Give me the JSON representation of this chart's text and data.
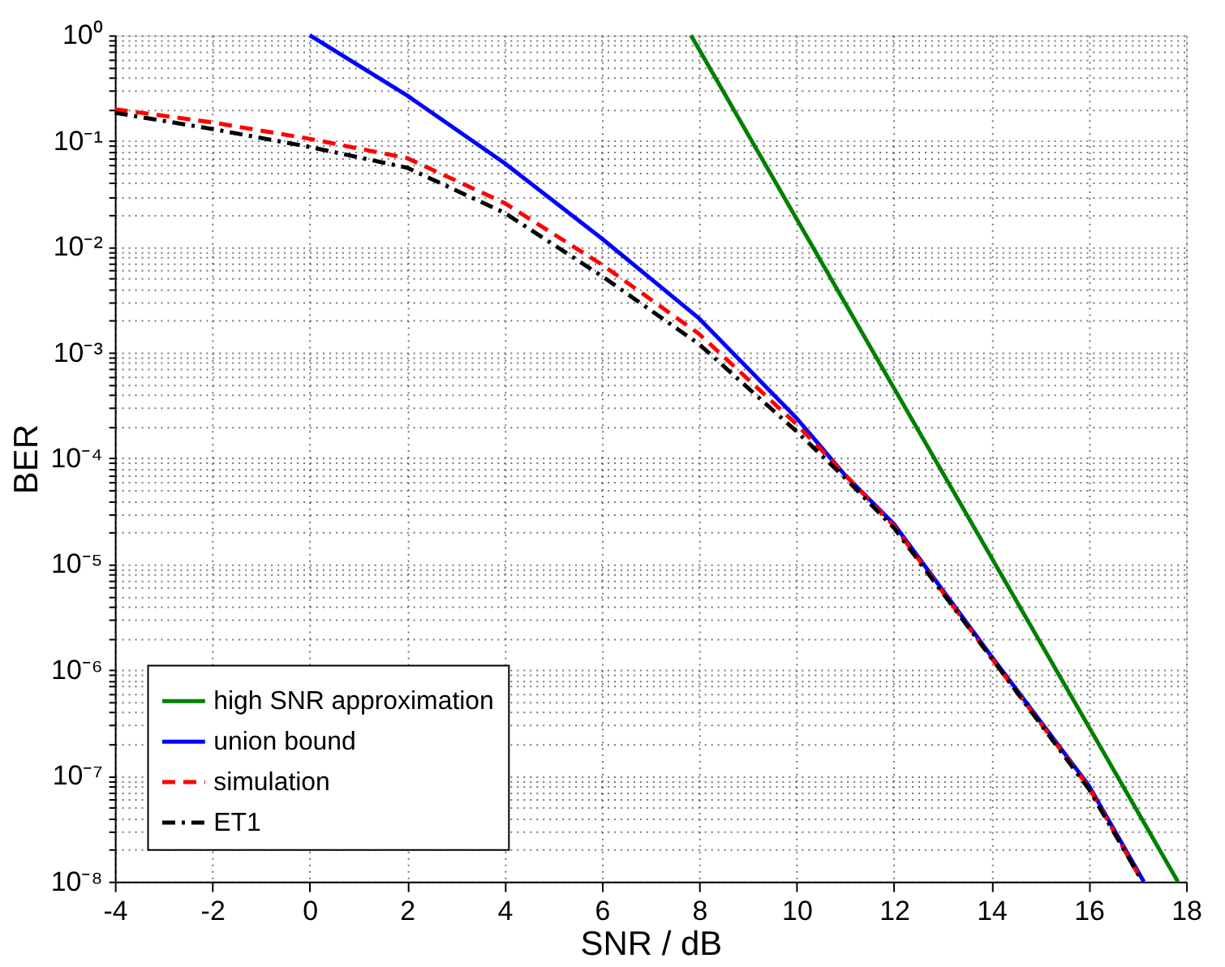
{
  "chart_data": {
    "type": "line",
    "xlabel": "SNR / dB",
    "ylabel": "BER",
    "log": "y",
    "grid": true,
    "legend": "bottom left",
    "marker": "none",
    "xlim": [
      -4,
      18
    ],
    "xticks": [
      -4,
      -2,
      0,
      2,
      4,
      6,
      8,
      10,
      12,
      14,
      16,
      18
    ],
    "ylim": [
      1e-08,
      1
    ],
    "yticks": [
      {
        "value": 1e-08,
        "label": "10⁻⁸"
      },
      {
        "value": 1e-07,
        "label": "10⁻⁷"
      },
      {
        "value": 1e-06,
        "label": "10⁻⁶"
      },
      {
        "value": 1e-05,
        "label": "10⁻⁵"
      },
      {
        "value": 0.0001,
        "label": "10⁻⁴"
      },
      {
        "value": 0.001,
        "label": "10⁻³"
      },
      {
        "value": 0.01,
        "label": "10⁻²"
      },
      {
        "value": 0.1,
        "label": "10⁻¹"
      },
      {
        "value": 1,
        "label": "10⁰"
      }
    ],
    "series": [
      {
        "name": "high SNR approximation",
        "color": "#008000",
        "line_style": "solid",
        "x": [
          7.83,
          17.83
        ],
        "values": [
          1,
          1e-08
        ]
      },
      {
        "name": "union bound",
        "color": "#0000ff",
        "line_style": "solid",
        "x": [
          0,
          2,
          4,
          6,
          8,
          10,
          11,
          12,
          14,
          16,
          17.13
        ],
        "values": [
          1,
          0.27,
          0.062,
          0.012,
          0.0021,
          0.00024,
          6.9e-05,
          2.4e-05,
          1.35e-06,
          8.1e-08,
          1e-08
        ]
      },
      {
        "name": "simulation",
        "color": "#ff0000",
        "line_style": "dashed",
        "x": [
          -4,
          -2,
          0,
          2,
          4,
          6,
          8,
          10,
          11,
          12,
          14,
          16,
          17.1
        ],
        "values": [
          0.2,
          0.15,
          0.105,
          0.069,
          0.026,
          0.0068,
          0.0015,
          0.00021,
          7e-05,
          2.3e-05,
          1.3e-06,
          7.8e-08,
          1e-08
        ]
      },
      {
        "name": "ET1",
        "color": "#000000",
        "line_style": "dashdot",
        "x": [
          -4,
          -2,
          0,
          2,
          4,
          6,
          8,
          10,
          11,
          12,
          14,
          16,
          17.1
        ],
        "values": [
          0.185,
          0.13,
          0.088,
          0.056,
          0.021,
          0.0053,
          0.0012,
          0.00018,
          6.5e-05,
          2.2e-05,
          1.3e-06,
          7.5e-08,
          1e-08
        ]
      }
    ]
  }
}
